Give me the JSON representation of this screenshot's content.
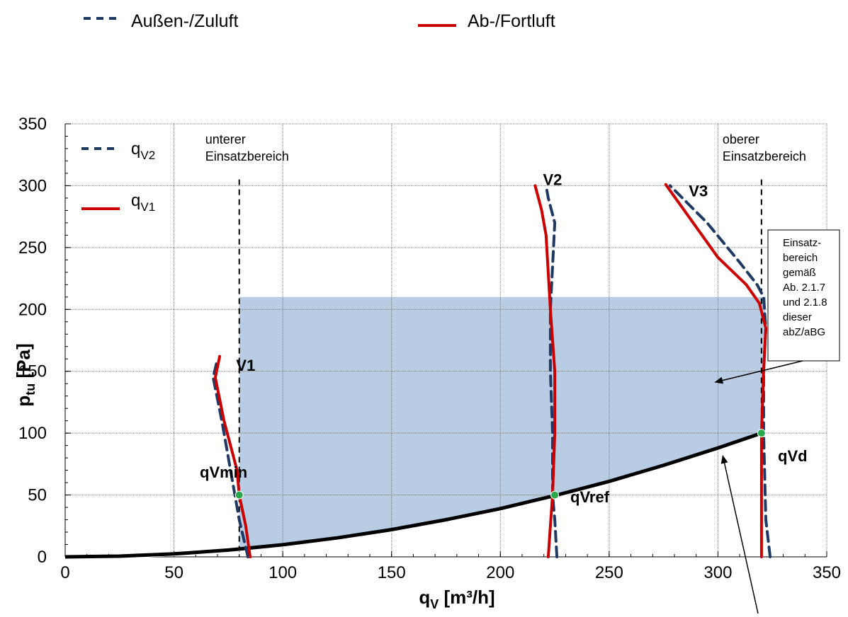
{
  "chart_data": {
    "type": "line",
    "xlabel": "q",
    "xlabel_sub": "V",
    "xlabel_unit": " [m³/h]",
    "ylabel": "p",
    "ylabel_sub": "tu",
    "ylabel_unit": " [Pa]",
    "xlim": [
      0,
      350
    ],
    "ylim": [
      0,
      350
    ],
    "xticks": [
      0,
      50,
      100,
      150,
      200,
      250,
      300,
      350
    ],
    "yticks": [
      0,
      50,
      100,
      150,
      200,
      250,
      300,
      350
    ],
    "grid": true,
    "top_legend": [
      {
        "label": "Außen-/Zuluft",
        "style": "dashed",
        "color": "#1f3864"
      },
      {
        "label": "Ab-/Fortluft",
        "style": "solid",
        "color": "#cc0000"
      }
    ],
    "inner_legend": [
      {
        "label": "q",
        "sub": "V2",
        "style": "dashed",
        "color": "#1f3864"
      },
      {
        "label": "q",
        "sub": "V1",
        "style": "solid",
        "color": "#cc0000"
      }
    ],
    "series": [
      {
        "name": "V1",
        "kind": "V2-dashed",
        "color": "#1f3864",
        "x": [
          84,
          80,
          78,
          76,
          74,
          72,
          68,
          70
        ],
        "y": [
          0,
          30,
          50,
          70,
          90,
          110,
          145,
          160
        ]
      },
      {
        "name": "V1",
        "kind": "V1-solid",
        "color": "#cc0000",
        "x": [
          85,
          83,
          80,
          79,
          76,
          73,
          69,
          71
        ],
        "y": [
          0,
          25,
          50,
          70,
          90,
          110,
          145,
          162
        ]
      },
      {
        "name": "V2",
        "kind": "V2-dashed",
        "color": "#1f3864",
        "x": [
          226,
          225,
          224,
          224,
          223,
          223,
          225,
          222,
          221
        ],
        "y": [
          0,
          30,
          50,
          100,
          150,
          200,
          270,
          290,
          300
        ]
      },
      {
        "name": "V2",
        "kind": "V1-solid",
        "color": "#cc0000",
        "x": [
          222,
          223,
          224,
          225,
          225,
          223,
          221,
          219,
          216
        ],
        "y": [
          0,
          25,
          50,
          100,
          150,
          200,
          260,
          280,
          300
        ]
      },
      {
        "name": "V3",
        "kind": "V2-dashed",
        "color": "#1f3864",
        "x": [
          324,
          322,
          321,
          321,
          322,
          321,
          318,
          310,
          295,
          278
        ],
        "y": [
          0,
          30,
          100,
          150,
          185,
          210,
          220,
          238,
          270,
          300
        ]
      },
      {
        "name": "V3",
        "kind": "V1-solid",
        "color": "#cc0000",
        "x": [
          320,
          320,
          320,
          321,
          322,
          319,
          313,
          300,
          276
        ],
        "y": [
          0,
          40,
          100,
          150,
          185,
          205,
          220,
          242,
          301
        ]
      }
    ],
    "system_curve": {
      "color": "#000000",
      "x": [
        0,
        25,
        50,
        75,
        100,
        125,
        150,
        175,
        200,
        225,
        250,
        275,
        300,
        320
      ],
      "y": [
        0,
        0.6,
        2.4,
        5.5,
        9.8,
        15.3,
        22,
        30,
        39,
        49.5,
        61,
        74,
        88,
        100
      ]
    },
    "operating_region": {
      "color": "#b8cce4",
      "x_min": 80,
      "x_max": 322,
      "y_top": 210
    },
    "vlines": [
      {
        "x": 80,
        "y_top": 305,
        "label": "unterer Einsatzbereich",
        "label_lines": [
          "unterer",
          "Einsatzbereich"
        ]
      },
      {
        "x": 320,
        "y_top": 305,
        "label": "oberer Einsatzbereich",
        "label_lines": [
          "oberer",
          "Einsatzbereich"
        ]
      }
    ],
    "points": [
      {
        "name": "qVmin",
        "x": 80,
        "y": 50
      },
      {
        "name": "qVref",
        "x": 225,
        "y": 50
      },
      {
        "name": "qVd",
        "x": 320,
        "y": 100
      }
    ],
    "series_labels": [
      {
        "text": "V1",
        "x": 76,
        "y": 155
      },
      {
        "text": "V2",
        "x": 217,
        "y": 305
      },
      {
        "text": "V3",
        "x": 284,
        "y": 296
      }
    ],
    "annotation_box": {
      "lines": [
        "Einsatz-",
        "bereich",
        "gemäß",
        "Ab. 2.1.7",
        "und 2.1.8",
        "dieser",
        "abZ/aBG"
      ],
      "arrow_to": {
        "x": 297,
        "y": 143
      }
    },
    "second_arrow_to": {
      "x": 300,
      "y": 87
    }
  }
}
